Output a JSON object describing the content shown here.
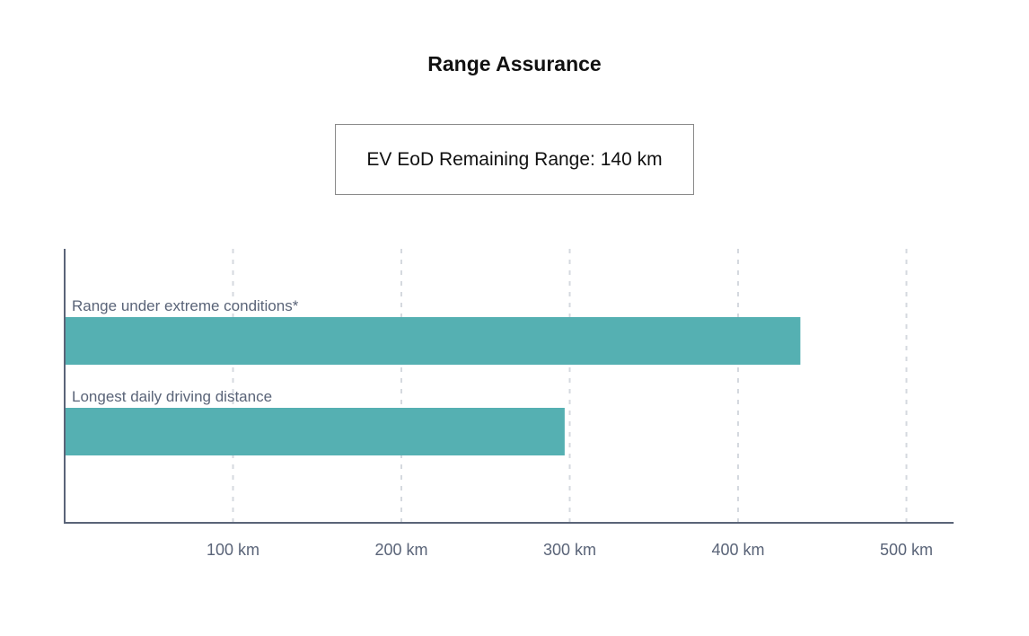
{
  "header": {
    "title": "Range Assurance"
  },
  "info_box": {
    "text": "EV EoD Remaining Range: 140 km"
  },
  "chart_data": {
    "type": "bar",
    "orientation": "horizontal",
    "categories": [
      "Range under extreme conditions*",
      "Longest daily driving distance"
    ],
    "values": [
      437,
      297
    ],
    "unit": "km",
    "xlim": [
      0,
      528
    ],
    "ticks": [
      100,
      200,
      300,
      400,
      500
    ],
    "tick_labels": [
      "100 km",
      "200 km",
      "300 km",
      "400 km",
      "500 km"
    ],
    "grid": true,
    "legend": "none",
    "bar_color": "#55b0b2",
    "axis_color": "#5a6478",
    "grid_color": "#d5d9df"
  }
}
